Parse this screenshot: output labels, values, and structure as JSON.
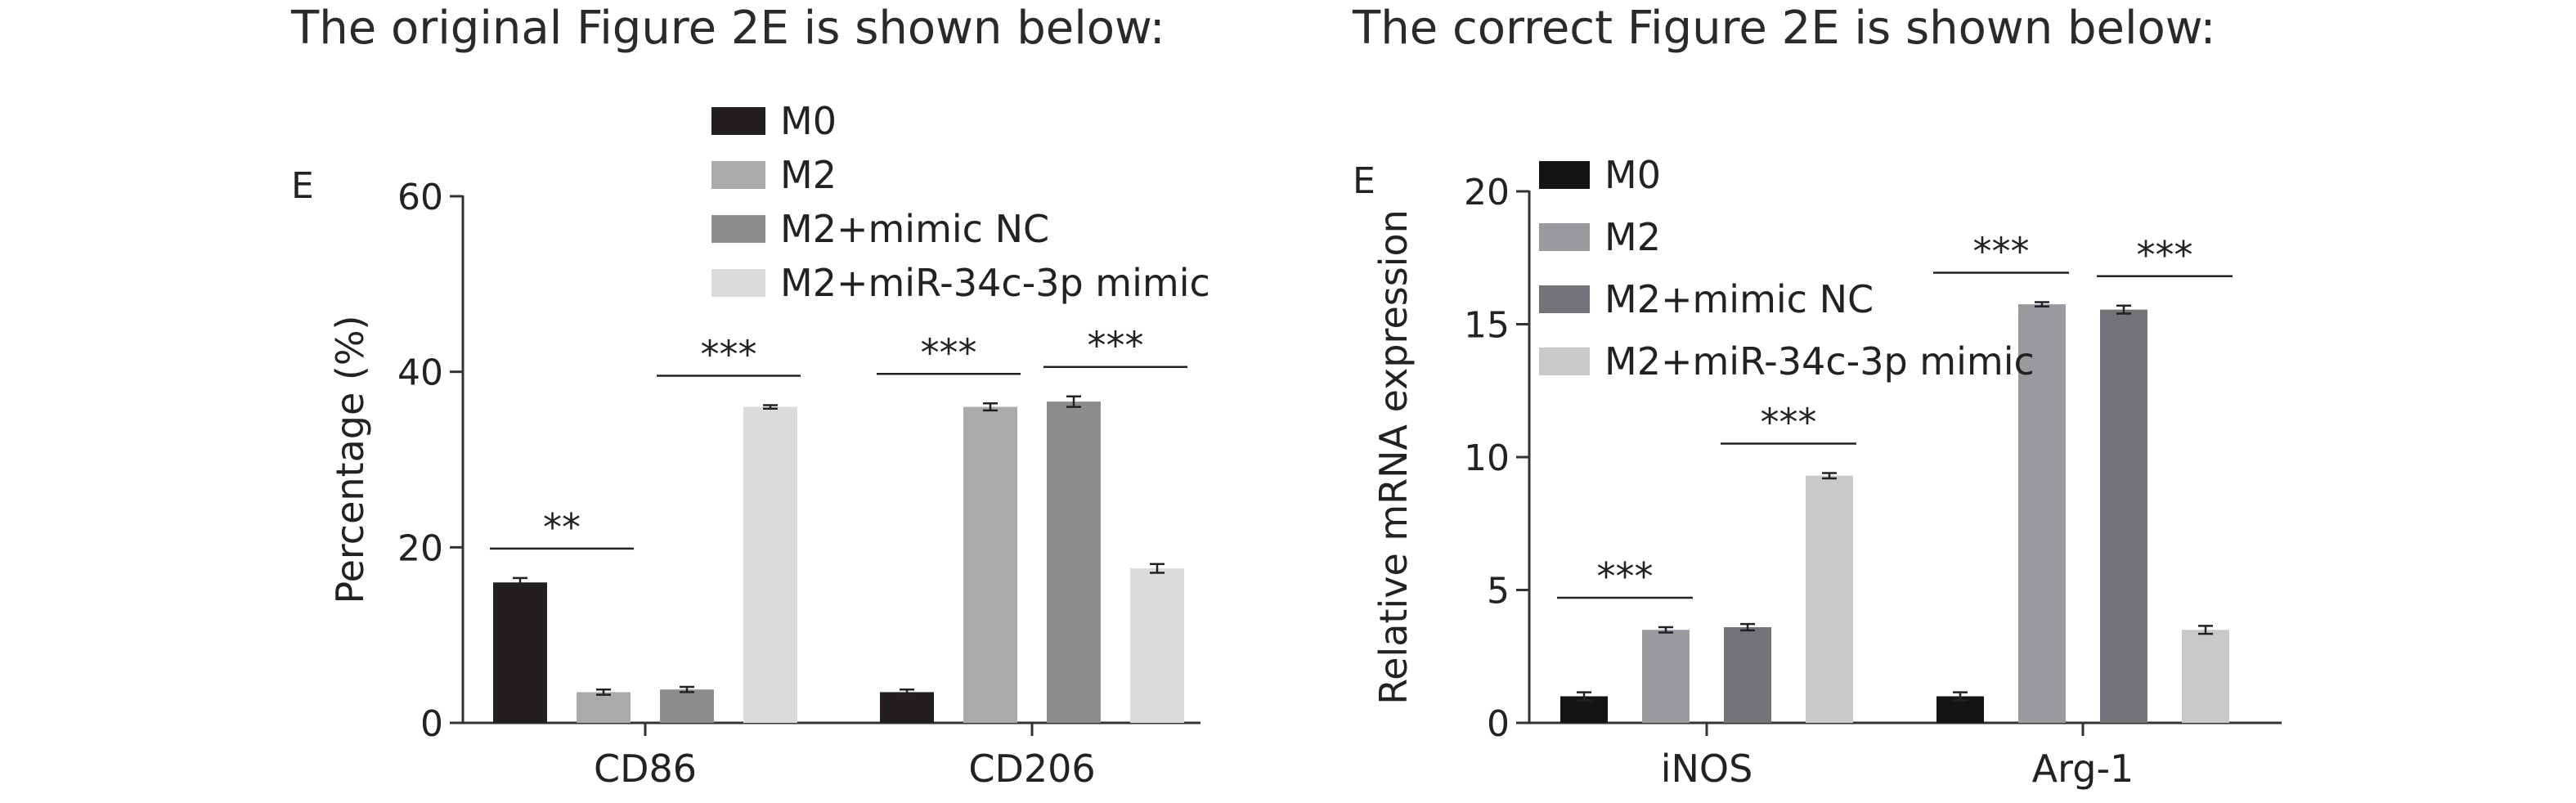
{
  "headings": {
    "left": "The original Figure 2E is shown below:",
    "right": "The correct Figure 2E is shown below:"
  },
  "chart_data": [
    {
      "type": "bar",
      "panel_label": "E",
      "ylabel": "Percentage (%)",
      "ylim": [
        0,
        60
      ],
      "yticks": [
        0,
        20,
        40,
        60
      ],
      "categories": [
        "CD86",
        "CD206"
      ],
      "legend_position": "top",
      "series": [
        {
          "name": "M0",
          "color": "#231f20",
          "values": [
            16.0,
            3.5
          ],
          "errors": [
            0.5,
            0.3
          ]
        },
        {
          "name": "M2",
          "color": "#aaaaaa",
          "values": [
            3.5,
            36.0
          ],
          "errors": [
            0.3,
            0.4
          ]
        },
        {
          "name": "M2+mimic NC",
          "color": "#8d8d8d",
          "values": [
            3.8,
            36.6
          ],
          "errors": [
            0.3,
            0.6
          ]
        },
        {
          "name": "M2+miR-34c-3p mimic",
          "color": "#dbdbdb",
          "values": [
            36.0,
            17.6
          ],
          "errors": [
            0.2,
            0.5
          ]
        }
      ],
      "significance": [
        {
          "category": "CD86",
          "from_series": 0,
          "to_series": 1,
          "label": "**"
        },
        {
          "category": "CD86",
          "from_series": 2,
          "to_series": 3,
          "label": "***"
        },
        {
          "category": "CD206",
          "from_series": 0,
          "to_series": 1,
          "label": "***"
        },
        {
          "category": "CD206",
          "from_series": 2,
          "to_series": 3,
          "label": "***"
        }
      ]
    },
    {
      "type": "bar",
      "panel_label": "E",
      "ylabel": "Relative mRNA expression",
      "ylim": [
        0,
        20
      ],
      "yticks": [
        0,
        5,
        10,
        15,
        20
      ],
      "categories": [
        "iNOS",
        "Arg-1"
      ],
      "legend_position": "top-left",
      "series": [
        {
          "name": "M0",
          "color": "#141414",
          "values": [
            1.0,
            1.0
          ],
          "errors": [
            0.15,
            0.15
          ]
        },
        {
          "name": "M2",
          "color": "#9a9a9e",
          "values": [
            3.5,
            15.75
          ],
          "errors": [
            0.1,
            0.08
          ]
        },
        {
          "name": "M2+mimic NC",
          "color": "#737479",
          "values": [
            3.6,
            15.55
          ],
          "errors": [
            0.12,
            0.15
          ]
        },
        {
          "name": "M2+miR-34c-3p mimic",
          "color": "#c9c9cb",
          "values": [
            9.3,
            3.5
          ],
          "errors": [
            0.1,
            0.15
          ]
        }
      ],
      "significance": [
        {
          "category": "iNOS",
          "from_series": 0,
          "to_series": 1,
          "label": "***"
        },
        {
          "category": "iNOS",
          "from_series": 2,
          "to_series": 3,
          "label": "***"
        },
        {
          "category": "Arg-1",
          "from_series": 0,
          "to_series": 1,
          "label": "***"
        },
        {
          "category": "Arg-1",
          "from_series": 2,
          "to_series": 3,
          "label": "***"
        }
      ]
    }
  ]
}
